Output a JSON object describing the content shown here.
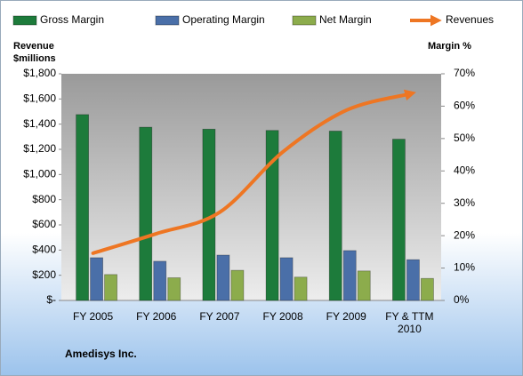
{
  "chart_data": {
    "type": "bar",
    "y_label": "Revenue $millions",
    "y2_label": "Margin %",
    "footer": "Amedisys Inc.",
    "categories": [
      "FY 2005",
      "FY 2006",
      "FY 2007",
      "FY 2008",
      "FY 2009",
      "FY & TTM 2010"
    ],
    "series": [
      {
        "name": "Gross Margin",
        "color": "#1d7b3b",
        "axis": "y2",
        "values": [
          57.4,
          53.5,
          52.9,
          52.5,
          52.3,
          49.8
        ]
      },
      {
        "name": "Operating Margin",
        "color": "#4a6fa8",
        "axis": "y2",
        "values": [
          13.2,
          12.1,
          14.0,
          13.2,
          15.4,
          12.6
        ]
      },
      {
        "name": "Net Margin",
        "color": "#8cac4c",
        "axis": "y2",
        "values": [
          8.0,
          7.0,
          9.3,
          7.2,
          9.1,
          6.8
        ]
      },
      {
        "name": "Revenues",
        "type": "line",
        "color": "#ee7623",
        "values": [
          375,
          530,
          700,
          1180,
          1510,
          1640
        ]
      }
    ],
    "ylim": [
      0,
      1800
    ],
    "yticks": [
      {
        "value": 0,
        "label": "$-"
      },
      {
        "value": 200,
        "label": "$200"
      },
      {
        "value": 400,
        "label": "$400"
      },
      {
        "value": 600,
        "label": "$600"
      },
      {
        "value": 800,
        "label": "$800"
      },
      {
        "value": 1000,
        "label": "$1,000"
      },
      {
        "value": 1200,
        "label": "$1,200"
      },
      {
        "value": 1400,
        "label": "$1,400"
      },
      {
        "value": 1600,
        "label": "$1,600"
      },
      {
        "value": 1800,
        "label": "$1,800"
      }
    ],
    "y2lim": [
      0,
      70
    ],
    "y2ticks": [
      {
        "value": 0,
        "label": "0%"
      },
      {
        "value": 10,
        "label": "10%"
      },
      {
        "value": 20,
        "label": "20%"
      },
      {
        "value": 30,
        "label": "30%"
      },
      {
        "value": 40,
        "label": "40%"
      },
      {
        "value": 50,
        "label": "50%"
      },
      {
        "value": 60,
        "label": "60%"
      },
      {
        "value": 70,
        "label": "70%"
      }
    ],
    "grid": false,
    "legend": "top"
  }
}
